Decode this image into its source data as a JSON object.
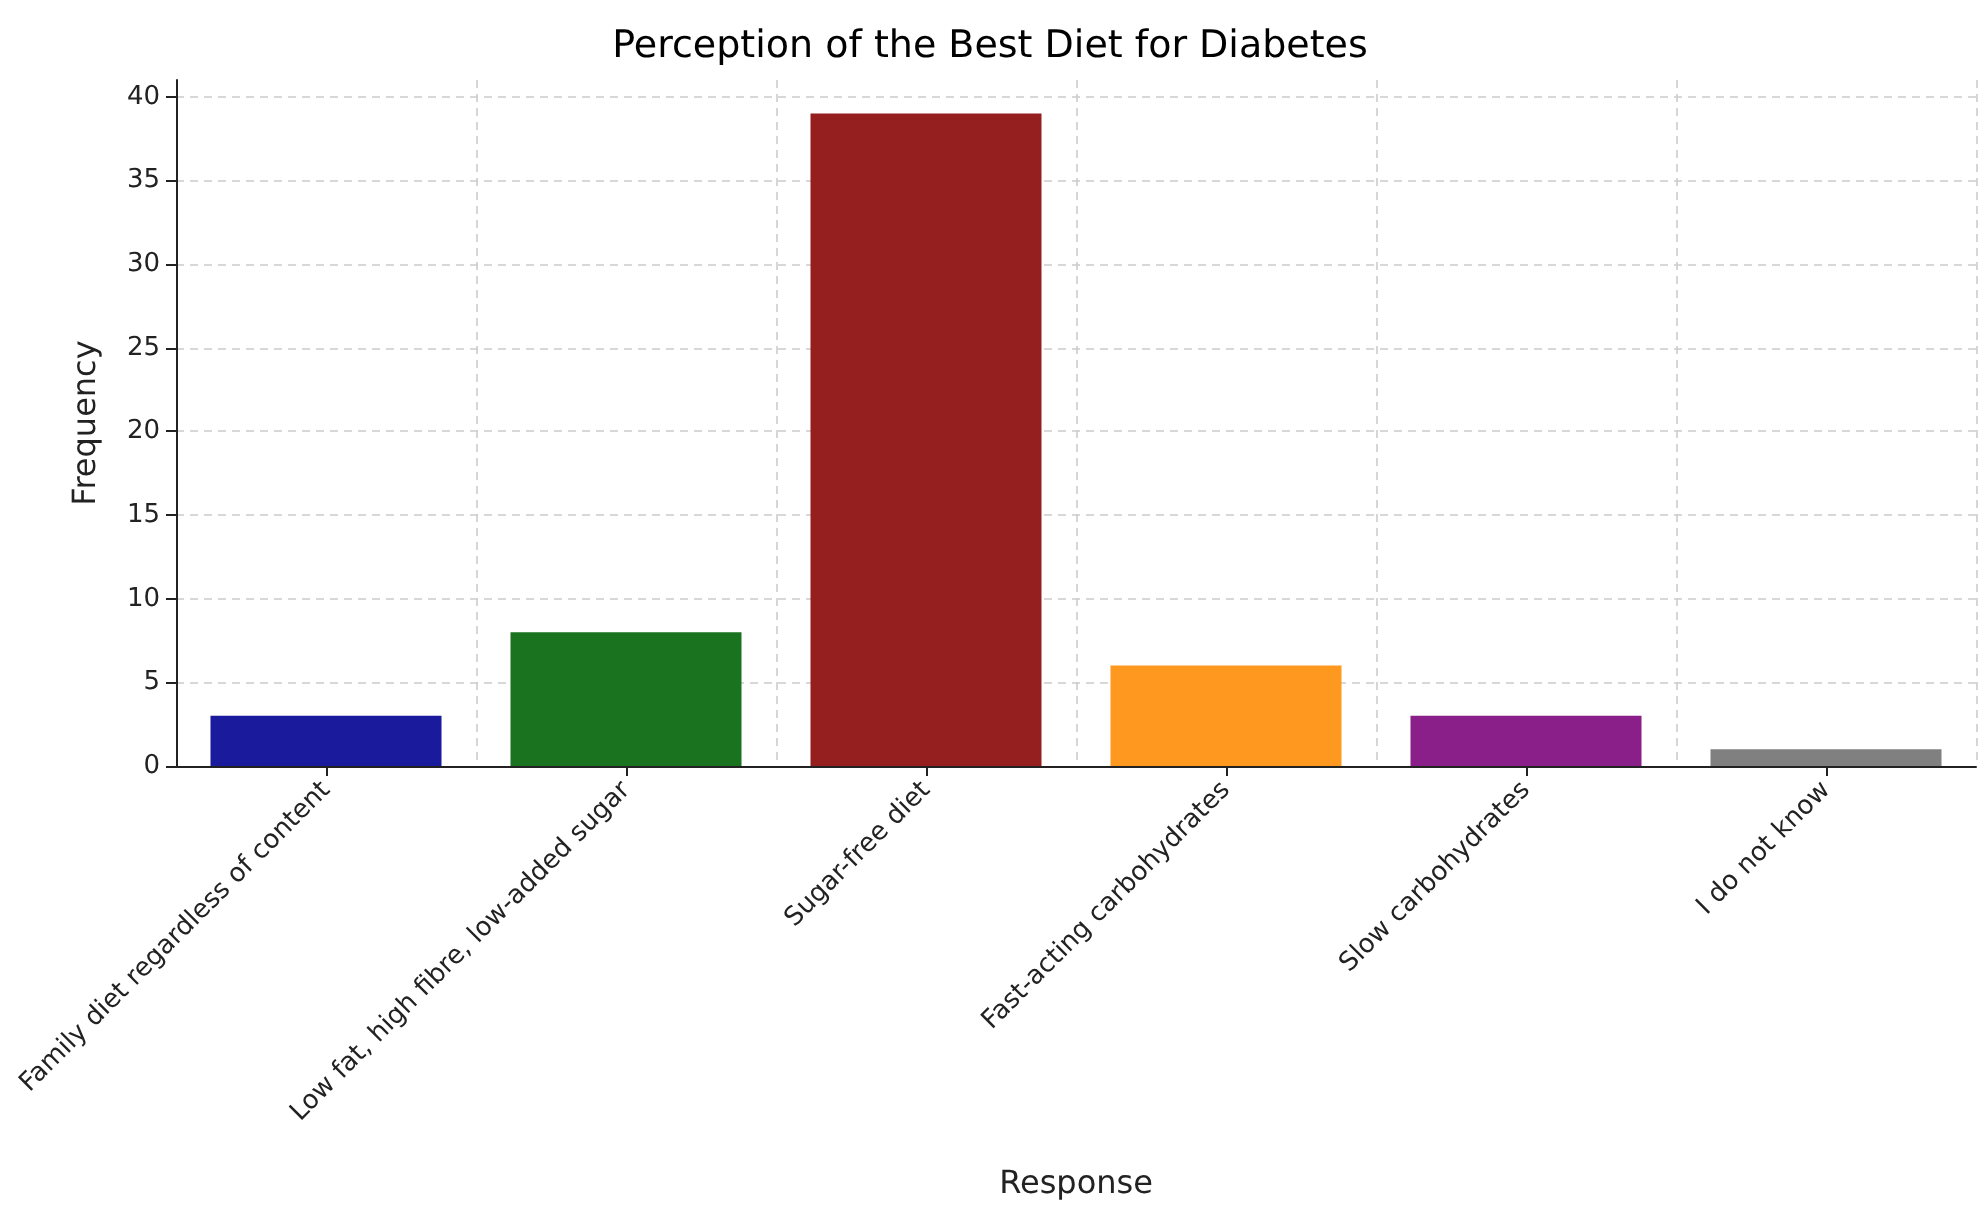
{
  "chart_data": {
    "type": "bar",
    "title": "Perception of the Best Diet for Diabetes",
    "xlabel": "Response",
    "ylabel": "Frequency",
    "categories": [
      "Family diet regardless of content",
      "Low fat, high fibre, low-added sugar",
      "Sugar-free diet",
      "Fast-acting carbohydrates",
      "Slow carbohydrates",
      "I do not know"
    ],
    "values": [
      3,
      8,
      39,
      6,
      3,
      1
    ],
    "colors": [
      "#1a1a9c",
      "#19731f",
      "#951f1f",
      "#ff981f",
      "#8a1f8a",
      "#808080"
    ],
    "ylim": [
      0,
      41
    ],
    "yticks": [
      0,
      5,
      10,
      15,
      20,
      25,
      30,
      35,
      40
    ],
    "grid": true
  }
}
